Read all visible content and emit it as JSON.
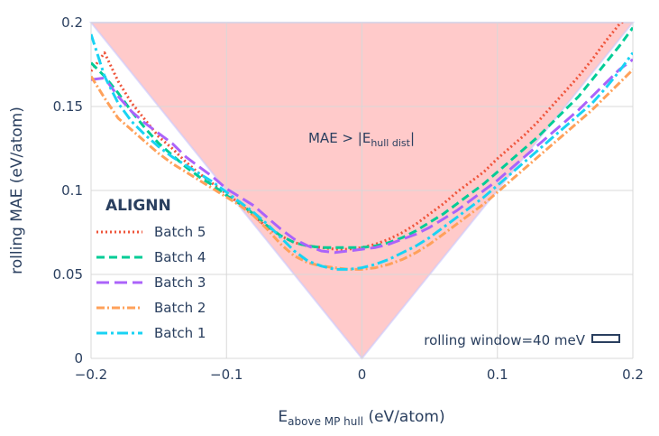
{
  "chart_data": {
    "type": "line",
    "title": "",
    "xlabel_main": "E",
    "xlabel_sub": "above MP hull",
    "xlabel_unit": " (eV/atom)",
    "ylabel": "rolling MAE (eV/atom)",
    "xlim": [
      -0.2,
      0.2
    ],
    "ylim": [
      0,
      0.2
    ],
    "x_ticks": [
      -0.2,
      -0.1,
      0,
      0.1,
      0.2
    ],
    "x_tick_labels": [
      "−0.2",
      "−0.1",
      "0",
      "0.1",
      "0.2"
    ],
    "y_ticks": [
      0,
      0.05,
      0.1,
      0.15,
      0.2
    ],
    "y_tick_labels": [
      "0",
      "0.05",
      "0.1",
      "0.15",
      "0.2"
    ],
    "shaded_region_label_main": "MAE > |E",
    "shaded_region_label_sub": "hull dist",
    "shaded_region_label_end": "|",
    "window_annotation": "rolling window=40 meV",
    "legend_title": "ALIGNN",
    "colors": {
      "shade": "#ffb3b3",
      "grid": "#d8d8d8",
      "text": "#2a3f5f"
    },
    "x": [
      -0.2,
      -0.19,
      -0.18,
      -0.17,
      -0.16,
      -0.15,
      -0.14,
      -0.13,
      -0.12,
      -0.11,
      -0.1,
      -0.09,
      -0.08,
      -0.07,
      -0.06,
      -0.05,
      -0.04,
      -0.03,
      -0.02,
      -0.01,
      0,
      0.01,
      0.02,
      0.03,
      0.04,
      0.05,
      0.06,
      0.07,
      0.08,
      0.09,
      0.1,
      0.11,
      0.12,
      0.13,
      0.14,
      0.15,
      0.16,
      0.17,
      0.18,
      0.19,
      0.2
    ],
    "series": [
      {
        "name": "Batch 5",
        "color": "#ef553b",
        "dash": "2,3",
        "values": [
          0.171,
          0.182,
          0.165,
          0.152,
          0.142,
          0.132,
          0.125,
          0.117,
          0.11,
          0.104,
          0.098,
          0.092,
          0.085,
          0.078,
          0.073,
          0.069,
          0.067,
          0.066,
          0.065,
          0.065,
          0.066,
          0.068,
          0.071,
          0.075,
          0.08,
          0.086,
          0.092,
          0.099,
          0.105,
          0.111,
          0.119,
          0.126,
          0.133,
          0.141,
          0.15,
          0.159,
          0.168,
          0.178,
          0.189,
          0.199,
          0.205
        ]
      },
      {
        "name": "Batch 4",
        "color": "#00cc96",
        "dash": "9,5",
        "values": [
          0.176,
          0.168,
          0.158,
          0.147,
          0.137,
          0.128,
          0.121,
          0.114,
          0.108,
          0.103,
          0.097,
          0.092,
          0.086,
          0.079,
          0.073,
          0.069,
          0.067,
          0.066,
          0.066,
          0.066,
          0.066,
          0.067,
          0.069,
          0.072,
          0.076,
          0.081,
          0.086,
          0.092,
          0.098,
          0.104,
          0.111,
          0.118,
          0.125,
          0.132,
          0.14,
          0.148,
          0.156,
          0.166,
          0.176,
          0.186,
          0.197
        ]
      },
      {
        "name": "Batch 3",
        "color": "#ab63fa",
        "dash": "14,6",
        "values": [
          0.166,
          0.167,
          0.156,
          0.147,
          0.14,
          0.134,
          0.128,
          0.12,
          0.114,
          0.108,
          0.101,
          0.096,
          0.091,
          0.084,
          0.077,
          0.071,
          0.067,
          0.064,
          0.063,
          0.064,
          0.065,
          0.066,
          0.068,
          0.071,
          0.074,
          0.078,
          0.083,
          0.088,
          0.094,
          0.1,
          0.106,
          0.113,
          0.12,
          0.127,
          0.134,
          0.141,
          0.148,
          0.156,
          0.164,
          0.172,
          0.178
        ]
      },
      {
        "name": "Batch 2",
        "color": "#ffa15a",
        "dash": "9,3,2,3",
        "values": [
          0.168,
          0.155,
          0.143,
          0.136,
          0.129,
          0.122,
          0.116,
          0.111,
          0.106,
          0.101,
          0.096,
          0.091,
          0.085,
          0.077,
          0.068,
          0.061,
          0.057,
          0.055,
          0.054,
          0.053,
          0.053,
          0.054,
          0.056,
          0.059,
          0.063,
          0.068,
          0.074,
          0.08,
          0.086,
          0.092,
          0.099,
          0.106,
          0.113,
          0.12,
          0.127,
          0.134,
          0.141,
          0.148,
          0.156,
          0.164,
          0.172
        ]
      },
      {
        "name": "Batch 1",
        "color": "#19d3f3",
        "dash": "12,4,3,4",
        "values": [
          0.193,
          0.168,
          0.152,
          0.141,
          0.133,
          0.126,
          0.12,
          0.115,
          0.11,
          0.105,
          0.099,
          0.093,
          0.087,
          0.08,
          0.072,
          0.064,
          0.058,
          0.055,
          0.053,
          0.053,
          0.054,
          0.056,
          0.059,
          0.063,
          0.067,
          0.072,
          0.078,
          0.084,
          0.09,
          0.096,
          0.103,
          0.11,
          0.117,
          0.124,
          0.131,
          0.138,
          0.145,
          0.152,
          0.161,
          0.171,
          0.182
        ]
      }
    ]
  }
}
